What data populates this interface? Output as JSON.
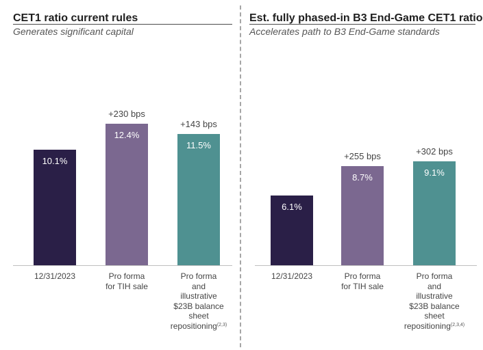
{
  "chart_data": [
    {
      "type": "bar",
      "title": "CET1 ratio current rules",
      "subtitle": "Generates significant capital",
      "categories": [
        "12/31/2023",
        "Pro forma for TIH sale",
        "Pro forma and illustrative $23B balance sheet repositioning"
      ],
      "category_lines": [
        [
          "12/31/2023"
        ],
        [
          "Pro forma",
          "for TIH sale"
        ],
        [
          "Pro forma",
          "and",
          "illustrative",
          "$23B balance",
          "sheet",
          "repositioning"
        ]
      ],
      "category_notes": [
        "",
        "",
        "(2,3)"
      ],
      "values": [
        10.1,
        12.4,
        11.5
      ],
      "value_labels": [
        "10.1%",
        "12.4%",
        "11.5%"
      ],
      "increments": [
        "",
        "+230 bps",
        "+143 bps"
      ],
      "colors": [
        "#2a1f47",
        "#7b6890",
        "#4f9191"
      ],
      "ylim": [
        0,
        15
      ],
      "xlabel": "",
      "ylabel": "",
      "grid": false
    },
    {
      "type": "bar",
      "title": "Est. fully phased-in B3 End-Game CET1 ratio",
      "subtitle": "Accelerates path to B3 End-Game standards",
      "categories": [
        "12/31/2023",
        "Pro forma for TIH sale",
        "Pro forma and illustrative $23B balance sheet repositioning"
      ],
      "category_lines": [
        [
          "12/31/2023"
        ],
        [
          "Pro forma",
          "for TIH sale"
        ],
        [
          "Pro forma",
          "and",
          "illustrative",
          "$23B balance",
          "sheet",
          "repositioning"
        ]
      ],
      "category_notes": [
        "",
        "",
        "(2,3,4)"
      ],
      "values": [
        6.1,
        8.7,
        9.1
      ],
      "value_labels": [
        "6.1%",
        "8.7%",
        "9.1%"
      ],
      "increments": [
        "",
        "+255 bps",
        "+302 bps"
      ],
      "colors": [
        "#2a1f47",
        "#7b6890",
        "#4f9191"
      ],
      "ylim": [
        0,
        15
      ],
      "xlabel": "",
      "ylabel": "",
      "grid": false
    }
  ]
}
